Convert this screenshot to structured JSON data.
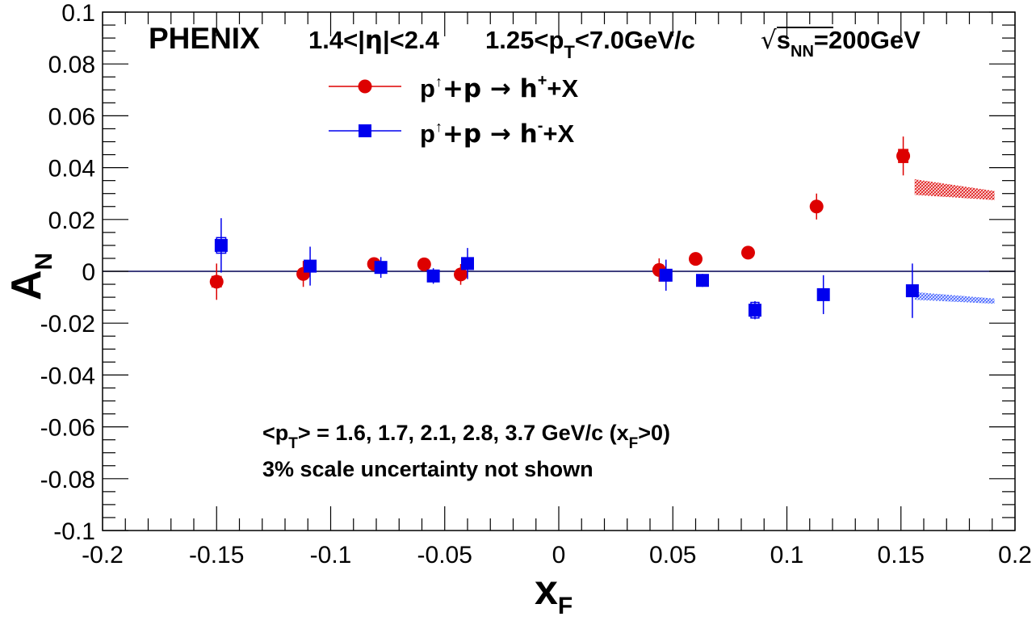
{
  "chart_data": {
    "type": "scatter",
    "experiment": "PHENIX",
    "title_parts": {
      "eta_pre": "1.4<|",
      "eta_sym": "η",
      "eta_post": "|<2.4",
      "pt_pre": "1.25<p",
      "pt_sub": "T",
      "pt_post": "<7.0GeV/c",
      "sqrt": "√",
      "s_main": "s",
      "s_sub": "NN",
      "s_post": "=200GeV"
    },
    "xlabel": {
      "main": "x",
      "sub": "F"
    },
    "ylabel": {
      "main": "A",
      "sub": "N"
    },
    "xlim": [
      -0.2,
      0.2
    ],
    "ylim": [
      -0.1,
      0.1
    ],
    "x_ticks": [
      "-0.2",
      "-0.15",
      "-0.1",
      "-0.05",
      "0",
      "0.05",
      "0.1",
      "0.15",
      "0.2"
    ],
    "x_tick_values": [
      -0.2,
      -0.15,
      -0.1,
      -0.05,
      0,
      0.05,
      0.1,
      0.15,
      0.2
    ],
    "y_ticks": [
      "0.1",
      "0.08",
      "0.06",
      "0.04",
      "0.02",
      "0",
      "-0.02",
      "-0.04",
      "-0.06",
      "-0.08",
      "-0.1"
    ],
    "y_tick_values": [
      0.1,
      0.08,
      0.06,
      0.04,
      0.02,
      0,
      -0.02,
      -0.04,
      -0.06,
      -0.08,
      -0.1
    ],
    "legend": [
      {
        "pre": "p",
        "arrow": "↑",
        "mid": "+p → h",
        "charge": "+",
        "post": "+X",
        "color": "#dd0000",
        "marker": "circle"
      },
      {
        "pre": "p",
        "arrow": "↑",
        "mid": "+p → h",
        "charge": "-",
        "post": "+X",
        "color": "#0000ee",
        "marker": "square"
      }
    ],
    "series": [
      {
        "color": "#dd0000",
        "marker": "circle",
        "points": [
          {
            "x": -0.15,
            "y": -0.004,
            "stat": 0.007,
            "syst_w": 0.004,
            "syst_h": 0.002
          },
          {
            "x": -0.112,
            "y": -0.001,
            "stat": 0.005,
            "syst_w": 0.003,
            "syst_h": 0.0015
          },
          {
            "x": -0.081,
            "y": 0.0028,
            "stat": 0.0015,
            "syst_w": 0.003,
            "syst_h": 0.0012
          },
          {
            "x": -0.059,
            "y": 0.0027,
            "stat": 0.001,
            "syst_w": 0.003,
            "syst_h": 0.0012
          },
          {
            "x": -0.043,
            "y": -0.0012,
            "stat": 0.004,
            "syst_w": 0.003,
            "syst_h": 0.0015
          },
          {
            "x": 0.044,
            "y": 0.0005,
            "stat": 0.0045,
            "syst_w": 0.003,
            "syst_h": 0.002
          },
          {
            "x": 0.06,
            "y": 0.0048,
            "stat": 0.001,
            "syst_w": 0.003,
            "syst_h": 0.0012
          },
          {
            "x": 0.083,
            "y": 0.0072,
            "stat": 0.0012,
            "syst_w": 0.003,
            "syst_h": 0.0015
          },
          {
            "x": 0.113,
            "y": 0.025,
            "stat": 0.005,
            "syst_w": 0.003,
            "syst_h": 0.0015
          },
          {
            "x": 0.151,
            "y": 0.0445,
            "stat": 0.0075,
            "syst_w": 0.004,
            "syst_h": 0.0025
          }
        ]
      },
      {
        "color": "#0000ee",
        "marker": "square",
        "points": [
          {
            "x": -0.148,
            "y": 0.01,
            "stat": 0.0105,
            "syst_w": 0.004,
            "syst_h": 0.003
          },
          {
            "x": -0.109,
            "y": 0.002,
            "stat": 0.0075,
            "syst_w": 0.003,
            "syst_h": 0.002
          },
          {
            "x": -0.078,
            "y": 0.0015,
            "stat": 0.004,
            "syst_w": 0.003,
            "syst_h": 0.0015
          },
          {
            "x": -0.055,
            "y": -0.0018,
            "stat": 0.003,
            "syst_w": 0.003,
            "syst_h": 0.0015
          },
          {
            "x": -0.04,
            "y": 0.003,
            "stat": 0.006,
            "syst_w": 0.003,
            "syst_h": 0.002
          },
          {
            "x": 0.047,
            "y": -0.0015,
            "stat": 0.006,
            "syst_w": 0.003,
            "syst_h": 0.002
          },
          {
            "x": 0.063,
            "y": -0.0035,
            "stat": 0.0025,
            "syst_w": 0.003,
            "syst_h": 0.0015
          },
          {
            "x": 0.086,
            "y": -0.015,
            "stat": 0.0035,
            "syst_w": 0.0035,
            "syst_h": 0.003
          },
          {
            "x": 0.116,
            "y": -0.009,
            "stat": 0.0075,
            "syst_w": 0.003,
            "syst_h": 0.002
          },
          {
            "x": 0.155,
            "y": -0.0075,
            "stat": 0.0105,
            "syst_w": 0.0035,
            "syst_h": 0.002
          }
        ]
      }
    ],
    "bands": [
      {
        "color": "#dd0000",
        "x": [
          0.156,
          0.191
        ],
        "upper": [
          0.0355,
          0.031
        ],
        "lower": [
          0.0295,
          0.0275
        ]
      },
      {
        "color": "#3355ff",
        "x": [
          0.156,
          0.191
        ],
        "upper": [
          -0.008,
          -0.0105
        ],
        "lower": [
          -0.011,
          -0.0125
        ]
      }
    ],
    "grid": false,
    "legend_position": "top-left"
  },
  "annotations": {
    "mean_pt": {
      "pre": "<p",
      "sub_t": "T",
      "mid": "> = 1.6, 1.7, 2.1, 2.8, 3.7 GeV/c (x",
      "sub_f": "F",
      "post": ">0)"
    },
    "scale_note": "3% scale uncertainty not shown"
  }
}
